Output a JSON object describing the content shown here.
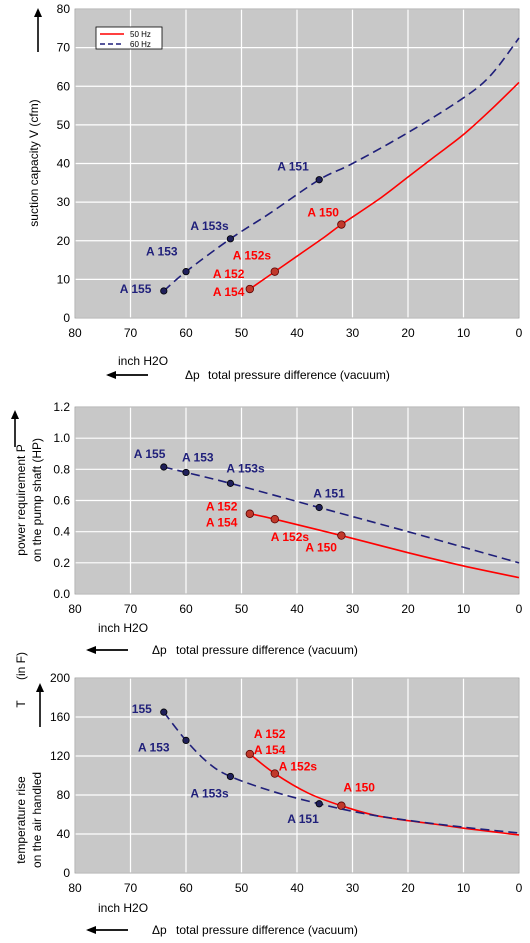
{
  "colors": {
    "hz50": "#ff0000",
    "hz60": "#1f1f7a",
    "plot_bg": "#c8c8c8",
    "grid": "#ffffff"
  },
  "legend": {
    "hz50": "50 Hz",
    "hz60": "60 Hz"
  },
  "chart_data": [
    {
      "type": "line",
      "ylabel": "suction capacity V (cfm)",
      "xlabel": "total pressure difference (vacuum)",
      "xunit": "inch H2O",
      "xsymbol": "Δp",
      "xlim": [
        80,
        0
      ],
      "xticks": [
        "80",
        "70",
        "60",
        "50",
        "40",
        "30",
        "20",
        "10",
        "0"
      ],
      "ylim": [
        0,
        80
      ],
      "yticks": [
        "0",
        "10",
        "20",
        "30",
        "40",
        "50",
        "60",
        "70",
        "80"
      ],
      "grid": true,
      "legend_position": "top-left",
      "series": [
        {
          "name": "50 Hz",
          "x": [
            48.5,
            44,
            40,
            35,
            32,
            25,
            20,
            15,
            10,
            5,
            0
          ],
          "y": [
            7.5,
            12,
            16,
            21,
            24.2,
            31,
            36.5,
            42,
            47.5,
            54,
            61
          ],
          "points": [
            {
              "x": 48.5,
              "y": 7.5,
              "labels": [
                "A 152",
                "A 154"
              ]
            },
            {
              "x": 44,
              "y": 12,
              "labels": [
                "A 152s"
              ]
            },
            {
              "x": 32,
              "y": 24.2,
              "labels": [
                "A 150"
              ]
            }
          ]
        },
        {
          "name": "60 Hz",
          "x": [
            64,
            60,
            52,
            45,
            36,
            30,
            20,
            10,
            5,
            0
          ],
          "y": [
            7,
            12,
            20.5,
            27,
            35.8,
            40,
            48,
            57,
            63,
            72.5
          ],
          "points": [
            {
              "x": 64,
              "y": 7,
              "labels": [
                "A 155"
              ]
            },
            {
              "x": 60,
              "y": 12,
              "labels": [
                "A 153"
              ]
            },
            {
              "x": 52,
              "y": 20.5,
              "labels": [
                "A 153s"
              ]
            },
            {
              "x": 36,
              "y": 35.8,
              "labels": [
                "A 151"
              ]
            }
          ]
        }
      ]
    },
    {
      "type": "line",
      "ylabel": "power requirement P",
      "ylabel2": "on the pump shaft (HP)",
      "xlabel": "total pressure difference (vacuum)",
      "xunit": "inch H2O",
      "xsymbol": "Δp",
      "xlim": [
        80,
        0
      ],
      "xticks": [
        "80",
        "70",
        "60",
        "50",
        "40",
        "30",
        "20",
        "10",
        "0"
      ],
      "ylim": [
        0,
        1.2
      ],
      "yticks": [
        "0.0",
        "0.2",
        "0.4",
        "0.6",
        "0.8",
        "1.0",
        "1.2"
      ],
      "grid": true,
      "series": [
        {
          "name": "50 Hz",
          "x": [
            48.5,
            44,
            32,
            20,
            10,
            0
          ],
          "y": [
            0.515,
            0.48,
            0.375,
            0.265,
            0.18,
            0.105
          ],
          "points": [
            {
              "x": 48.5,
              "y": 0.515,
              "labels": [
                "A 152",
                "A 154"
              ]
            },
            {
              "x": 44,
              "y": 0.48,
              "labels": [
                "A 152s"
              ]
            },
            {
              "x": 32,
              "y": 0.375,
              "labels": [
                "A 150"
              ]
            }
          ]
        },
        {
          "name": "60 Hz",
          "x": [
            64,
            60,
            52,
            36,
            20,
            10,
            0
          ],
          "y": [
            0.815,
            0.78,
            0.71,
            0.555,
            0.4,
            0.3,
            0.2
          ],
          "points": [
            {
              "x": 64,
              "y": 0.815,
              "labels": [
                "A 155"
              ]
            },
            {
              "x": 60,
              "y": 0.78,
              "labels": [
                "A 153"
              ]
            },
            {
              "x": 52,
              "y": 0.71,
              "labels": [
                "A 153s"
              ]
            },
            {
              "x": 36,
              "y": 0.555,
              "labels": [
                "A 151"
              ]
            }
          ]
        }
      ]
    },
    {
      "type": "line",
      "ylabel": "temperature rise",
      "ylabel2": "on the air handled",
      "ylabel_top": "T",
      "ylabel_unit": "(in F)",
      "xlabel": "total pressure difference (vacuum)",
      "xunit": "inch H2O",
      "xsymbol": "Δp",
      "xlim": [
        80,
        0
      ],
      "xticks": [
        "80",
        "70",
        "60",
        "50",
        "40",
        "30",
        "20",
        "10",
        "0"
      ],
      "ylim": [
        0,
        200
      ],
      "yticks": [
        "0",
        "40",
        "80",
        "120",
        "160",
        "200"
      ],
      "grid": true,
      "series": [
        {
          "name": "50 Hz",
          "x": [
            48.5,
            44,
            38,
            32,
            25,
            15,
            10,
            0
          ],
          "y": [
            122,
            102,
            82,
            69,
            58,
            50,
            46,
            39
          ],
          "points": [
            {
              "x": 48.5,
              "y": 122,
              "labels": [
                "A 152",
                "A 154"
              ]
            },
            {
              "x": 44,
              "y": 102,
              "labels": [
                "A 152s"
              ]
            },
            {
              "x": 32,
              "y": 69,
              "labels": [
                "A 150"
              ]
            }
          ]
        },
        {
          "name": "60 Hz",
          "x": [
            64,
            60,
            56,
            52,
            44,
            36,
            28,
            20,
            10,
            0
          ],
          "y": [
            165,
            136,
            113,
            99,
            83,
            71,
            61,
            54,
            47,
            41
          ],
          "points": [
            {
              "x": 64,
              "y": 165,
              "labels": [
                "155"
              ]
            },
            {
              "x": 60,
              "y": 136,
              "labels": [
                "A 153"
              ]
            },
            {
              "x": 52,
              "y": 99,
              "labels": [
                "A 153s"
              ]
            },
            {
              "x": 36,
              "y": 71,
              "labels": [
                "A 151"
              ]
            }
          ]
        }
      ]
    }
  ]
}
